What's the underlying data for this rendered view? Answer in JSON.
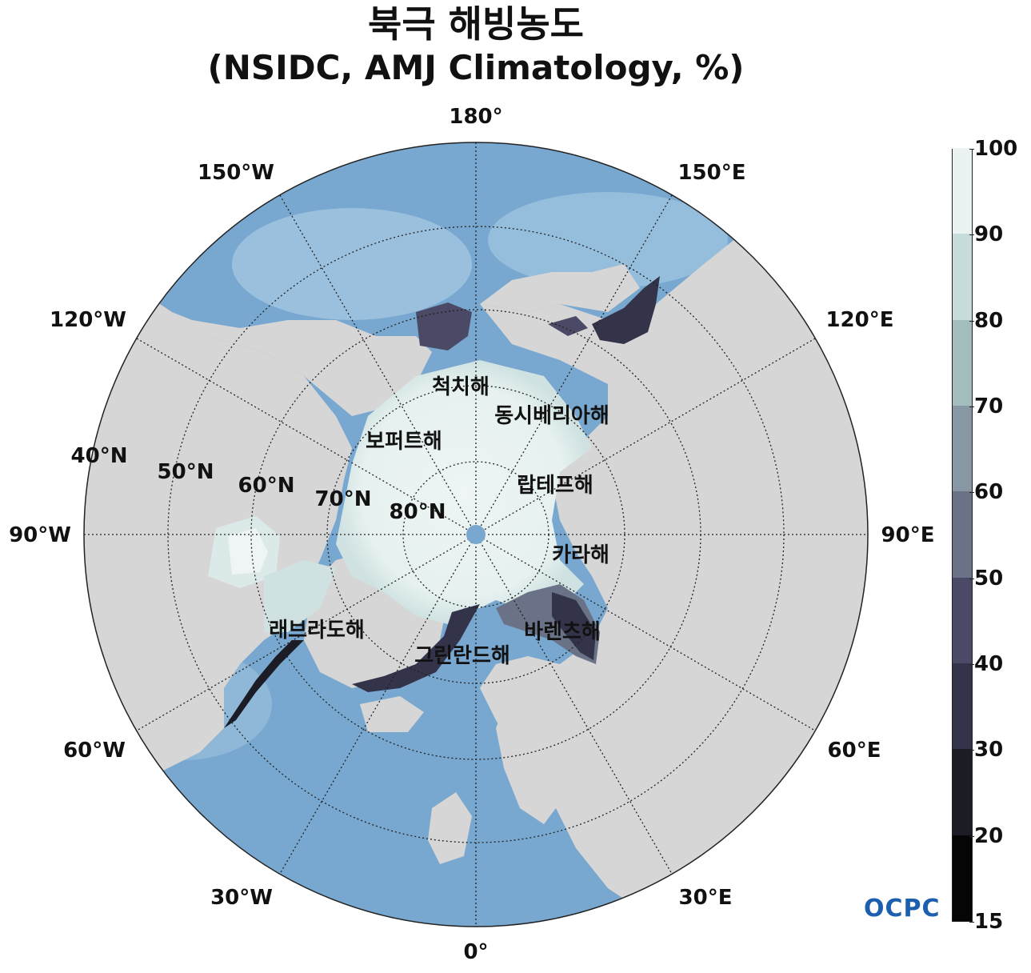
{
  "title": {
    "line1": "북극 해빙농도",
    "line2": "(NSIDC, AMJ Climatology, %)"
  },
  "longitude_labels": {
    "lon_180": "180°",
    "lon_150w": "150°W",
    "lon_150e": "150°E",
    "lon_120w": "120°W",
    "lon_120e": "120°E",
    "lon_90w": "90°W",
    "lon_90e": "90°E",
    "lon_60w": "60°W",
    "lon_60e": "60°E",
    "lon_30w": "30°W",
    "lon_30e": "30°E",
    "lon_0": "0°"
  },
  "latitude_labels": {
    "lat_40": "40°N",
    "lat_50": "50°N",
    "lat_60": "60°N",
    "lat_70": "70°N",
    "lat_80": "80°N"
  },
  "sea_labels": {
    "chukchi": "척치해",
    "east_siberian": "동시베리아해",
    "beaufort": "보퍼트해",
    "laptev": "랍테프해",
    "kara": "카라해",
    "barents": "바렌츠해",
    "labrador": "래브라도해",
    "greenland": "그린란드해"
  },
  "colorbar": {
    "ticks": [
      "15",
      "20",
      "30",
      "40",
      "50",
      "60",
      "70",
      "80",
      "90",
      "100"
    ],
    "levels": [
      15,
      20,
      30,
      40,
      50,
      60,
      70,
      80,
      90,
      100
    ],
    "colors": [
      "#050505",
      "#1c1c26",
      "#33334a",
      "#4a4a66",
      "#6a7288",
      "#8797a4",
      "#a3bcbd",
      "#c7dcdb",
      "#eaf3f2"
    ]
  },
  "logo": "OCPC",
  "colors": {
    "ocean": "#78a8cf",
    "land": "#d6d6d6",
    "ice": "#eaf3f2"
  }
}
